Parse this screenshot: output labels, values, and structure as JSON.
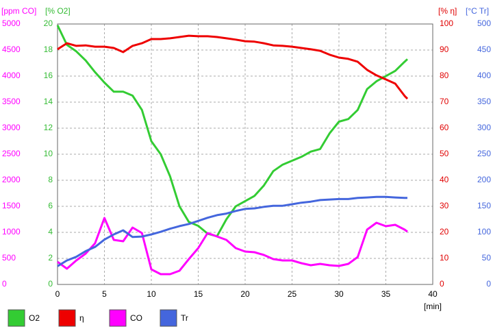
{
  "chart_data": {
    "type": "line",
    "xlabel": "[min]",
    "x": [
      0,
      1,
      2,
      3,
      4,
      5,
      6,
      7,
      8,
      9,
      10,
      11,
      12,
      13,
      14,
      15,
      16,
      17,
      18,
      19,
      20,
      21,
      22,
      23,
      24,
      25,
      26,
      27,
      28,
      29,
      30,
      31,
      32,
      33,
      34,
      35,
      36,
      37,
      37.3
    ],
    "xlim": [
      0,
      40
    ],
    "xticks": [
      0,
      5,
      10,
      15,
      20,
      25,
      30,
      35,
      40
    ],
    "grid": true,
    "axes": [
      {
        "label": "[ppm CO]",
        "color": "#ff00ff",
        "side": "left",
        "lim": [
          0,
          5000
        ],
        "ticks": [
          0,
          500,
          1000,
          1500,
          2000,
          2500,
          3000,
          3500,
          4000,
          4500,
          5000
        ]
      },
      {
        "label": "[% O2]",
        "color": "#33bb33",
        "side": "left",
        "lim": [
          0,
          20
        ],
        "ticks": [
          0,
          2,
          4,
          6,
          8,
          10,
          12,
          14,
          16,
          18,
          20
        ]
      },
      {
        "label": "[% η]",
        "color": "#e00000",
        "side": "right",
        "lim": [
          0,
          100
        ],
        "ticks": [
          0,
          10,
          20,
          30,
          40,
          50,
          60,
          70,
          80,
          90,
          100
        ]
      },
      {
        "label": "[°C Tr]",
        "color": "#4466dd",
        "side": "right",
        "lim": [
          0,
          500
        ],
        "ticks": [
          0,
          50,
          100,
          150,
          200,
          250,
          300,
          350,
          400,
          450,
          500
        ]
      }
    ],
    "series": [
      {
        "name": "O2",
        "color": "#33cc33",
        "axis": 1,
        "values": [
          19.9,
          18.4,
          17.9,
          17.2,
          16.3,
          15.5,
          14.8,
          14.8,
          14.5,
          13.4,
          11,
          10,
          8.3,
          6,
          4.8,
          4.5,
          3.9,
          3.7,
          5,
          6,
          6.4,
          6.8,
          7.6,
          8.7,
          9.2,
          9.5,
          9.8,
          10.2,
          10.4,
          11.6,
          12.5,
          12.7,
          13.4,
          15,
          15.6,
          16,
          16.4,
          17.1,
          17.3
        ]
      },
      {
        "name": "η",
        "color": "#ee0000",
        "axis": 2,
        "values": [
          90.3,
          92.6,
          91.6,
          91.8,
          91.3,
          91.3,
          90.8,
          89.2,
          91.6,
          92.6,
          94.2,
          94.2,
          94.5,
          95,
          95.5,
          95.3,
          95.3,
          95,
          94.5,
          94,
          93.4,
          93.2,
          92.6,
          91.8,
          91.6,
          91.3,
          90.8,
          90.3,
          89.7,
          88.2,
          87.1,
          86.6,
          85.5,
          82.4,
          80.3,
          78.7,
          77.1,
          72.4,
          71.3
        ]
      },
      {
        "name": "CO",
        "color": "#ff00ff",
        "axis": 0,
        "values": [
          434,
          303,
          460,
          592,
          790,
          1276,
          855,
          829,
          1092,
          987,
          289,
          197,
          197,
          263,
          487,
          697,
          987,
          921,
          855,
          697,
          632,
          618,
          566,
          487,
          461,
          461,
          408,
          368,
          395,
          368,
          355,
          395,
          526,
          1053,
          1184,
          1118,
          1145,
          1053,
          1013
        ]
      },
      {
        "name": "Tr",
        "color": "#4466dd",
        "axis": 3,
        "values": [
          35,
          46,
          53,
          64,
          72,
          86,
          96,
          104,
          91,
          92,
          96,
          101,
          107,
          112,
          116,
          122,
          128,
          133,
          136,
          141,
          145,
          146,
          149,
          151,
          151,
          154,
          157,
          159,
          162,
          163,
          164,
          164,
          166,
          167,
          168,
          168,
          167,
          166,
          166
        ]
      }
    ]
  }
}
